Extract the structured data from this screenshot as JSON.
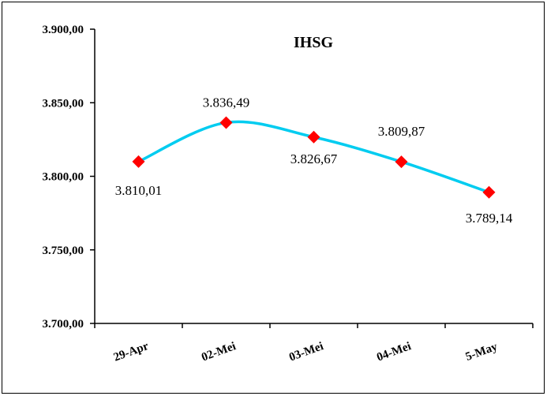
{
  "chart_data": {
    "type": "line",
    "title": "IHSG",
    "categories": [
      "29-Apr",
      "02-Mei",
      "03-Mei",
      "04-Mei",
      "5-May"
    ],
    "series": [
      {
        "values": [
          3810.01,
          3836.49,
          3826.67,
          3809.87,
          3789.14
        ],
        "labels": [
          "3.810,01",
          "3.836,49",
          "3.826,67",
          "3.809,87",
          "3.789,14"
        ],
        "line_color": "#00ccf0",
        "marker_color": "#ff0000",
        "marker": "diamond",
        "smooth": true
      }
    ],
    "ylim": [
      3700,
      3900
    ],
    "yticks": [
      3700,
      3750,
      3800,
      3850,
      3900
    ],
    "ytick_labels": [
      "3.700,00",
      "3.750,00",
      "3.800,00",
      "3.850,00",
      "3.900,00"
    ],
    "grid": false
  }
}
